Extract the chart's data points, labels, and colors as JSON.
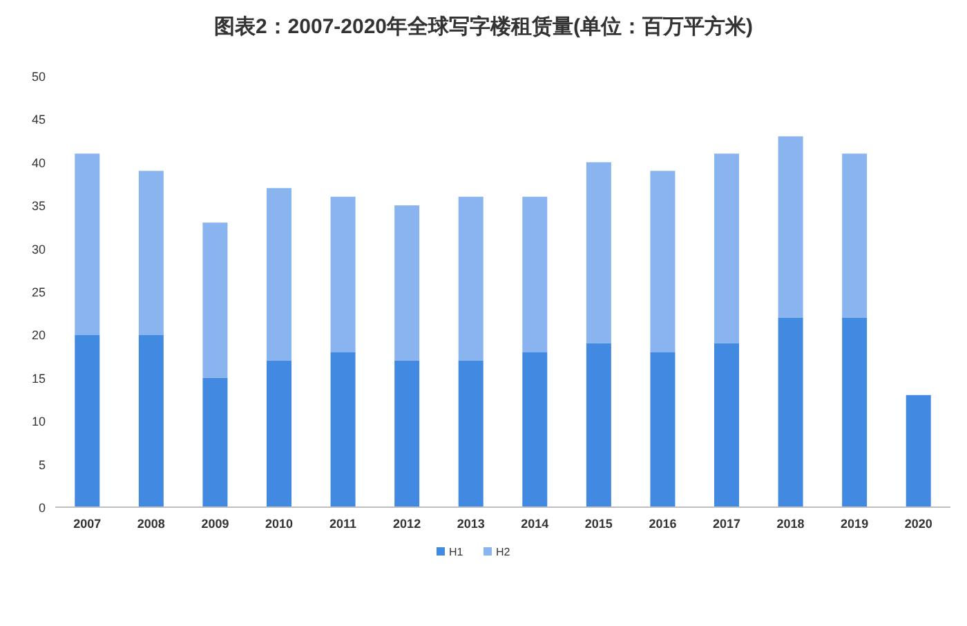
{
  "chart_data": {
    "type": "bar",
    "title": "图表2：2007-2020年全球写字楼租赁量(单位：百万平方米)",
    "categories": [
      "2007",
      "2008",
      "2009",
      "2010",
      "2011",
      "2012",
      "2013",
      "2014",
      "2015",
      "2016",
      "2017",
      "2018",
      "2019",
      "2020"
    ],
    "stacked": true,
    "ylim": [
      0,
      50
    ],
    "yticks": [
      0,
      5,
      10,
      15,
      20,
      25,
      30,
      35,
      40,
      45,
      50
    ],
    "legend": "bottom",
    "series": [
      {
        "name": "H1",
        "color": "#4189e1",
        "values": [
          20,
          20,
          15,
          17,
          18,
          17,
          17,
          18,
          19,
          18,
          19,
          22,
          22,
          13
        ]
      },
      {
        "name": "H2",
        "color": "#89b4f0",
        "values": [
          21,
          19,
          18,
          20,
          18,
          18,
          19,
          18,
          21,
          21,
          22,
          21,
          19,
          null
        ]
      }
    ]
  }
}
